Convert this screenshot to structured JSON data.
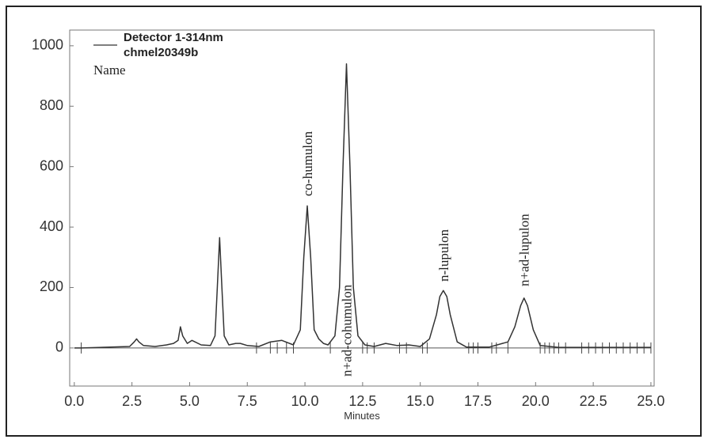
{
  "chart_data": {
    "type": "line",
    "legend": [
      "Detector 1-314nm",
      "chmel20349b"
    ],
    "legend_caption": "Name",
    "x_label": "Minutes",
    "xlim": [
      -0.2,
      25.14
    ],
    "ylim": [
      -126,
      1052
    ],
    "xticks": [
      {
        "value": 0,
        "label": "0.0"
      },
      {
        "value": 2.5,
        "label": "2.5"
      },
      {
        "value": 5,
        "label": "5.0"
      },
      {
        "value": 7.5,
        "label": "7.5"
      },
      {
        "value": 10,
        "label": "10.0"
      },
      {
        "value": 12.5,
        "label": "12.5"
      },
      {
        "value": 15,
        "label": "15.0"
      },
      {
        "value": 17.5,
        "label": "17.5"
      },
      {
        "value": 20,
        "label": "20.0"
      },
      {
        "value": 22.5,
        "label": "22.5"
      },
      {
        "value": 25,
        "label": "25.0"
      }
    ],
    "yticks": [
      0,
      200,
      400,
      600,
      800,
      1000
    ],
    "color": "#333333",
    "x": [
      0,
      0.3,
      2.4,
      2.6,
      2.7,
      2.8,
      3.0,
      3.5,
      4.0,
      4.3,
      4.5,
      4.6,
      4.7,
      4.9,
      5.1,
      5.5,
      5.9,
      6.1,
      6.2,
      6.3,
      6.4,
      6.5,
      6.7,
      7.0,
      7.2,
      7.5,
      8.0,
      8.5,
      9.0,
      9.5,
      9.8,
      9.95,
      10.1,
      10.25,
      10.4,
      10.6,
      10.8,
      11.0,
      11.3,
      11.5,
      11.65,
      11.8,
      11.95,
      12.1,
      12.3,
      12.6,
      13.0,
      13.5,
      14.0,
      14.5,
      15.0,
      15.4,
      15.7,
      15.85,
      16.0,
      16.15,
      16.3,
      16.6,
      17.0,
      18.0,
      18.8,
      19.1,
      19.35,
      19.5,
      19.65,
      19.9,
      20.2,
      21.0,
      25.0
    ],
    "values": [
      0,
      0,
      5,
      20,
      30,
      20,
      8,
      5,
      10,
      15,
      25,
      70,
      40,
      15,
      25,
      10,
      8,
      40,
      200,
      365,
      200,
      40,
      10,
      15,
      15,
      8,
      5,
      20,
      25,
      10,
      60,
      300,
      470,
      300,
      60,
      30,
      15,
      10,
      40,
      200,
      600,
      940,
      600,
      200,
      40,
      10,
      5,
      15,
      8,
      10,
      5,
      30,
      110,
      170,
      190,
      170,
      110,
      20,
      3,
      3,
      20,
      70,
      140,
      165,
      140,
      60,
      8,
      2,
      2
    ],
    "event_marks": [
      0.3,
      7.9,
      8.5,
      8.8,
      9.2,
      9.5,
      11.1,
      12.5,
      12.7,
      13.0,
      14.1,
      14.4,
      15.1,
      15.3,
      17.1,
      17.3,
      17.5,
      18.1,
      18.3,
      18.8,
      20.2,
      20.4,
      20.6,
      20.8,
      21.0,
      21.3,
      22.0,
      22.3,
      22.6,
      22.9,
      23.2,
      23.5,
      23.8,
      24.1,
      24.4,
      24.7,
      25.0
    ],
    "annotations": [
      {
        "text": "co-humulon",
        "x": 10.1
      },
      {
        "text": "n+ad-cohumulon",
        "x": 11.8
      },
      {
        "text": "n-lupulon",
        "x": 16.0
      },
      {
        "text": "n+ad-lupulon",
        "x": 19.5
      }
    ]
  }
}
